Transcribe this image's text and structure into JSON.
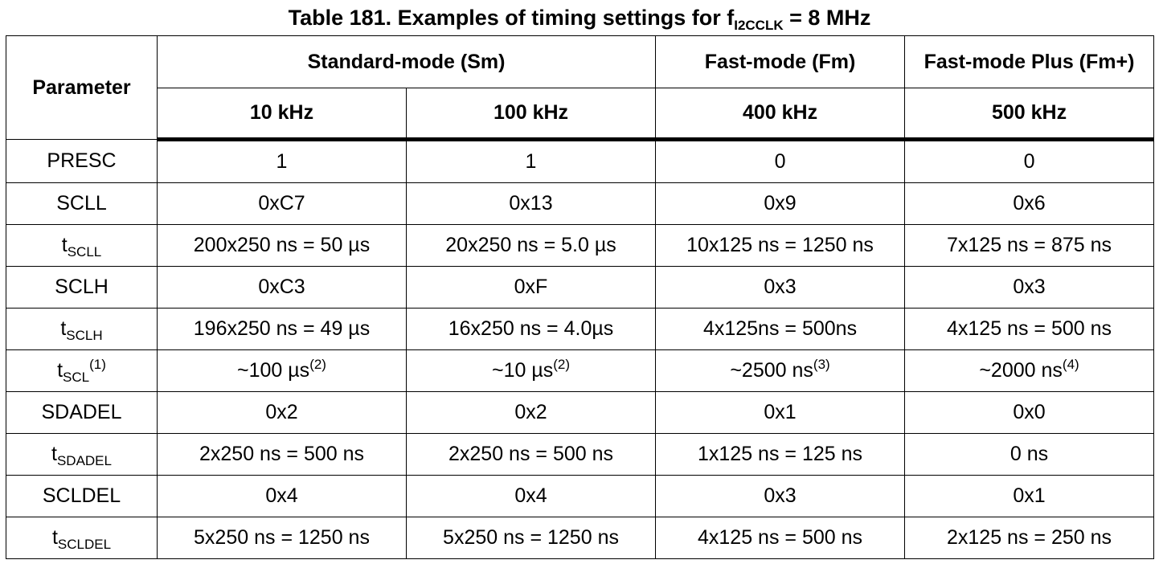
{
  "caption": {
    "prefix": "Table 181. Examples of timing settings for f",
    "subscript": "I2CCLK",
    "suffix": " = 8 MHz"
  },
  "header": {
    "parameter": "Parameter",
    "groups": {
      "sm": "Standard-mode (Sm)",
      "fm": "Fast-mode (Fm)",
      "fmp": "Fast-mode Plus (Fm+)"
    },
    "freqs": [
      "10 kHz",
      "100 kHz",
      "400 kHz",
      "500 kHz"
    ]
  },
  "rows": [
    {
      "param": {
        "main": "PRESC",
        "sub": "",
        "sup": ""
      },
      "cells": [
        {
          "text": "1",
          "sup": ""
        },
        {
          "text": "1",
          "sup": ""
        },
        {
          "text": "0",
          "sup": ""
        },
        {
          "text": "0",
          "sup": ""
        }
      ]
    },
    {
      "param": {
        "main": "SCLL",
        "sub": "",
        "sup": ""
      },
      "cells": [
        {
          "text": "0xC7",
          "sup": ""
        },
        {
          "text": "0x13",
          "sup": ""
        },
        {
          "text": "0x9",
          "sup": ""
        },
        {
          "text": "0x6",
          "sup": ""
        }
      ]
    },
    {
      "param": {
        "main": "t",
        "sub": "SCLL",
        "sup": ""
      },
      "cells": [
        {
          "text": "200x250 ns = 50 µs",
          "sup": ""
        },
        {
          "text": "20x250 ns = 5.0 µs",
          "sup": ""
        },
        {
          "text": "10x125 ns = 1250 ns",
          "sup": ""
        },
        {
          "text": "7x125 ns = 875 ns",
          "sup": ""
        }
      ]
    },
    {
      "param": {
        "main": "SCLH",
        "sub": "",
        "sup": ""
      },
      "cells": [
        {
          "text": "0xC3",
          "sup": ""
        },
        {
          "text": "0xF",
          "sup": ""
        },
        {
          "text": "0x3",
          "sup": ""
        },
        {
          "text": "0x3",
          "sup": ""
        }
      ]
    },
    {
      "param": {
        "main": "t",
        "sub": "SCLH",
        "sup": ""
      },
      "cells": [
        {
          "text": "196x250 ns = 49 µs",
          "sup": ""
        },
        {
          "text": "16x250 ns = 4.0µs",
          "sup": ""
        },
        {
          "text": "4x125ns = 500ns",
          "sup": ""
        },
        {
          "text": "4x125 ns = 500 ns",
          "sup": ""
        }
      ]
    },
    {
      "param": {
        "main": "t",
        "sub": "SCL",
        "sup": "(1)"
      },
      "cells": [
        {
          "text": "~100 µs",
          "sup": "(2)"
        },
        {
          "text": "~10 µs",
          "sup": "(2)"
        },
        {
          "text": "~2500 ns",
          "sup": "(3)"
        },
        {
          "text": "~2000 ns",
          "sup": "(4)"
        }
      ]
    },
    {
      "param": {
        "main": "SDADEL",
        "sub": "",
        "sup": ""
      },
      "cells": [
        {
          "text": "0x2",
          "sup": ""
        },
        {
          "text": "0x2",
          "sup": ""
        },
        {
          "text": "0x1",
          "sup": ""
        },
        {
          "text": "0x0",
          "sup": ""
        }
      ]
    },
    {
      "param": {
        "main": "t",
        "sub": "SDADEL",
        "sup": ""
      },
      "cells": [
        {
          "text": "2x250 ns = 500 ns",
          "sup": ""
        },
        {
          "text": "2x250 ns = 500 ns",
          "sup": ""
        },
        {
          "text": "1x125 ns = 125 ns",
          "sup": ""
        },
        {
          "text": "0 ns",
          "sup": ""
        }
      ]
    },
    {
      "param": {
        "main": "SCLDEL",
        "sub": "",
        "sup": ""
      },
      "cells": [
        {
          "text": "0x4",
          "sup": ""
        },
        {
          "text": "0x4",
          "sup": ""
        },
        {
          "text": "0x3",
          "sup": ""
        },
        {
          "text": "0x1",
          "sup": ""
        }
      ]
    },
    {
      "param": {
        "main": "t",
        "sub": "SCLDEL",
        "sup": ""
      },
      "cells": [
        {
          "text": "5x250 ns = 1250 ns",
          "sup": ""
        },
        {
          "text": "5x250 ns = 1250 ns",
          "sup": ""
        },
        {
          "text": "4x125 ns = 500 ns",
          "sup": ""
        },
        {
          "text": "2x125 ns = 250 ns",
          "sup": ""
        }
      ]
    }
  ]
}
